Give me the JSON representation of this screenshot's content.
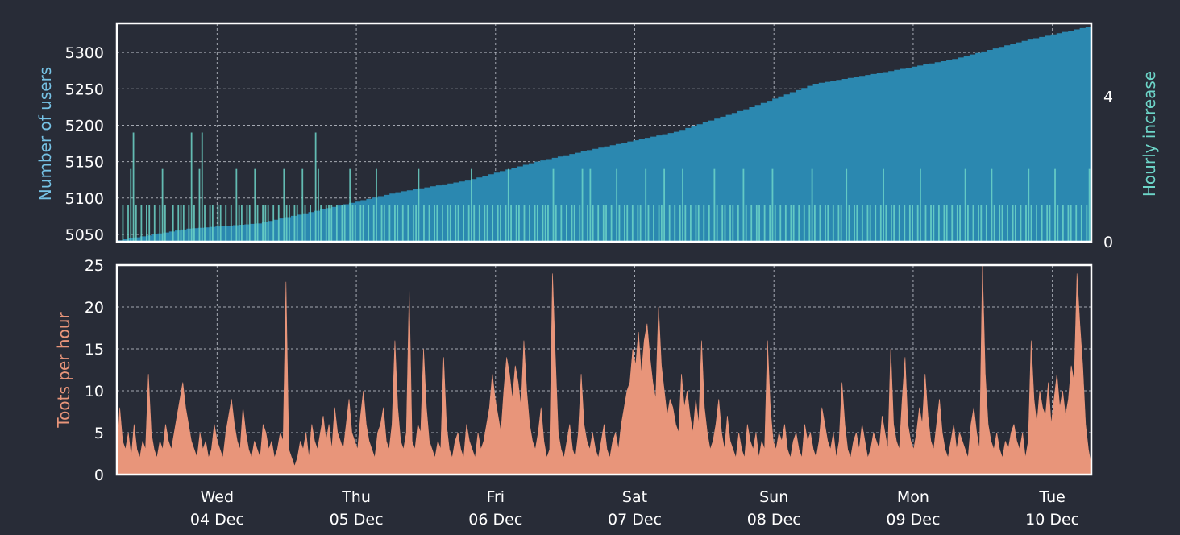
{
  "colors": {
    "background": "#282c37",
    "users_fill": "#2b88b0",
    "users_label": "#76c3e6",
    "hourly_bars": "#6dd5c8",
    "toots_fill": "#e8957a",
    "frame": "#ffffff"
  },
  "chart_data": [
    {
      "type": "area",
      "panel": "top",
      "ylabel": "Number of users",
      "ylabel_right": "Hourly increase",
      "ylim": [
        5040,
        5340
      ],
      "y_ticks": [
        "5050",
        "5100",
        "5150",
        "5200",
        "5250",
        "5300"
      ],
      "y2lim": [
        0,
        6
      ],
      "y2_ticks": [
        "0",
        "4"
      ],
      "x_days": 7.0,
      "grid": true,
      "series": [
        {
          "kind": "step-area",
          "x": [
            0,
            0.5,
            1.0,
            1.5,
            2.0,
            2.5,
            3.0,
            3.5,
            4.0,
            4.5,
            5.0,
            5.5,
            6.0,
            6.5,
            7.0
          ],
          "values": [
            5042,
            5058,
            5065,
            5086,
            5108,
            5124,
            5150,
            5171,
            5191,
            5222,
            5257,
            5273,
            5291,
            5316,
            5337
          ]
        },
        {
          "kind": "hourly-bars",
          "values": [
            1,
            0,
            1,
            0,
            1,
            2,
            3,
            1,
            0,
            1,
            0,
            1,
            1,
            0,
            1,
            0,
            1,
            2,
            1,
            0,
            0,
            1,
            0,
            1,
            1,
            1,
            0,
            1,
            3,
            1,
            0,
            2,
            3,
            1,
            0,
            1,
            1,
            0,
            1,
            1,
            0,
            1,
            0,
            1,
            0,
            2,
            1,
            1,
            0,
            1,
            1,
            0,
            2,
            1,
            0,
            1,
            1,
            1,
            0,
            1,
            0,
            1,
            0,
            2,
            1,
            1,
            0,
            1,
            1,
            0,
            2,
            1,
            0,
            1,
            0,
            3,
            2,
            1,
            0,
            1,
            1,
            1,
            0,
            1,
            0,
            1,
            1,
            0,
            2,
            1,
            1,
            0,
            1,
            1,
            0,
            1,
            0,
            1,
            2,
            0,
            1,
            1,
            0,
            1,
            0,
            1,
            1,
            0,
            1,
            0,
            1,
            0,
            1,
            1,
            2,
            0,
            1,
            0,
            1,
            0,
            1,
            1,
            0,
            1,
            0,
            1,
            1,
            0,
            1,
            1,
            0,
            1,
            0,
            1,
            2,
            1,
            0,
            1,
            0,
            1,
            1,
            0,
            1,
            0,
            1,
            1,
            0,
            1,
            2,
            1,
            0,
            1,
            1,
            0,
            1,
            0,
            1,
            0,
            1,
            1,
            0,
            1,
            1,
            1,
            0,
            2,
            1,
            0,
            1,
            0,
            1,
            0,
            1,
            1,
            0,
            1,
            2,
            0,
            1,
            2,
            1,
            0,
            1,
            0,
            1,
            1,
            0,
            1,
            0,
            2,
            1,
            0,
            1,
            1,
            0,
            1,
            0,
            1,
            1,
            0,
            2,
            1,
            0,
            1,
            0,
            1,
            1,
            2,
            0,
            1,
            0,
            1,
            0,
            1,
            2,
            1,
            0,
            1,
            0,
            1,
            1,
            0,
            1,
            0,
            1,
            0,
            2,
            1,
            0,
            1,
            1,
            0,
            1,
            1,
            0,
            1,
            0,
            2,
            1,
            0,
            1,
            0,
            1,
            1,
            0,
            1,
            0,
            1,
            2,
            1,
            0,
            1,
            0,
            1,
            0,
            1,
            1,
            0,
            1,
            0,
            1,
            0,
            1,
            2,
            1,
            0,
            1,
            0,
            1,
            1,
            0,
            1,
            0,
            1,
            1,
            0,
            2,
            1,
            0,
            1,
            1,
            0,
            1,
            0,
            1,
            1,
            0,
            1,
            0,
            1,
            2,
            1,
            0,
            1,
            1,
            0,
            1,
            0,
            1,
            0,
            1,
            1,
            0,
            1,
            2,
            0,
            1,
            0,
            1,
            1,
            0,
            1,
            0,
            1,
            1,
            0,
            1,
            0,
            1,
            1,
            0,
            2,
            1,
            0,
            1,
            0,
            1,
            1,
            0,
            1,
            0,
            2,
            1,
            0,
            1,
            1,
            0,
            1,
            0,
            1,
            1,
            0,
            1,
            0,
            1,
            2,
            1,
            0,
            1,
            0,
            1,
            0,
            1,
            1,
            0,
            2,
            1,
            0,
            1,
            0,
            1,
            1,
            0,
            1,
            0,
            1,
            0,
            1,
            2
          ]
        }
      ]
    },
    {
      "type": "area",
      "panel": "bottom",
      "ylabel": "Toots per hour",
      "ylim": [
        0,
        25
      ],
      "y_ticks": [
        "0",
        "5",
        "10",
        "15",
        "20",
        "25"
      ],
      "x_days": 7.0,
      "grid": true,
      "x_ticks": [
        {
          "day": "Wed",
          "date": "04 Dec",
          "pos": 0.72
        },
        {
          "day": "Thu",
          "date": "05 Dec",
          "pos": 1.72
        },
        {
          "day": "Fri",
          "date": "06 Dec",
          "pos": 2.72
        },
        {
          "day": "Sat",
          "date": "07 Dec",
          "pos": 3.72
        },
        {
          "day": "Sun",
          "date": "08 Dec",
          "pos": 4.72
        },
        {
          "day": "Mon",
          "date": "09 Dec",
          "pos": 5.72
        },
        {
          "day": "Tue",
          "date": "10 Dec",
          "pos": 6.72
        }
      ],
      "series": [
        {
          "name": "",
          "kind": "hourly-area",
          "values": [
            2,
            8,
            4,
            3,
            5,
            2,
            6,
            3,
            2,
            4,
            3,
            12,
            5,
            3,
            2,
            4,
            3,
            6,
            4,
            3,
            5,
            7,
            9,
            11,
            8,
            6,
            4,
            3,
            2,
            5,
            3,
            4,
            2,
            3,
            6,
            4,
            3,
            2,
            5,
            7,
            9,
            6,
            4,
            3,
            8,
            5,
            3,
            2,
            4,
            3,
            2,
            6,
            5,
            3,
            4,
            2,
            3,
            5,
            4,
            23,
            3,
            2,
            1,
            2,
            4,
            3,
            5,
            2,
            6,
            4,
            3,
            5,
            7,
            4,
            6,
            3,
            8,
            5,
            4,
            3,
            6,
            9,
            5,
            4,
            3,
            7,
            10,
            6,
            4,
            3,
            2,
            5,
            6,
            8,
            4,
            3,
            6,
            16,
            8,
            4,
            3,
            5,
            22,
            4,
            3,
            6,
            5,
            15,
            8,
            4,
            3,
            2,
            4,
            3,
            14,
            6,
            3,
            2,
            4,
            5,
            3,
            2,
            6,
            4,
            3,
            2,
            5,
            3,
            4,
            6,
            8,
            12,
            9,
            7,
            5,
            10,
            14,
            12,
            9,
            13,
            11,
            8,
            16,
            10,
            6,
            4,
            3,
            5,
            8,
            4,
            2,
            3,
            24,
            14,
            5,
            3,
            2,
            4,
            6,
            3,
            2,
            5,
            12,
            6,
            4,
            3,
            5,
            3,
            2,
            4,
            6,
            3,
            2,
            4,
            5,
            3,
            6,
            8,
            10,
            11,
            15,
            13,
            17,
            12,
            16,
            18,
            14,
            11,
            9,
            20,
            13,
            10,
            7,
            9,
            8,
            6,
            5,
            12,
            8,
            10,
            7,
            5,
            9,
            6,
            16,
            8,
            5,
            3,
            4,
            6,
            9,
            5,
            3,
            7,
            4,
            3,
            2,
            5,
            3,
            2,
            6,
            4,
            3,
            5,
            2,
            4,
            3,
            16,
            8,
            4,
            3,
            5,
            4,
            6,
            3,
            2,
            4,
            5,
            3,
            2,
            6,
            4,
            5,
            3,
            2,
            4,
            8,
            6,
            4,
            3,
            5,
            2,
            4,
            11,
            6,
            3,
            2,
            4,
            5,
            3,
            6,
            4,
            2,
            3,
            5,
            4,
            3,
            7,
            5,
            3,
            15,
            6,
            4,
            3,
            9,
            14,
            6,
            4,
            3,
            5,
            8,
            6,
            12,
            7,
            4,
            3,
            6,
            9,
            5,
            3,
            2,
            4,
            6,
            3,
            5,
            4,
            3,
            2,
            6,
            8,
            5,
            3,
            25,
            12,
            6,
            4,
            3,
            5,
            3,
            2,
            4,
            3,
            5,
            6,
            4,
            3,
            5,
            2,
            4,
            16,
            9,
            6,
            10,
            8,
            7,
            11,
            6,
            9,
            12,
            8,
            10,
            7,
            9,
            13,
            11,
            24,
            18,
            13,
            6,
            3,
            1
          ]
        }
      ]
    }
  ]
}
